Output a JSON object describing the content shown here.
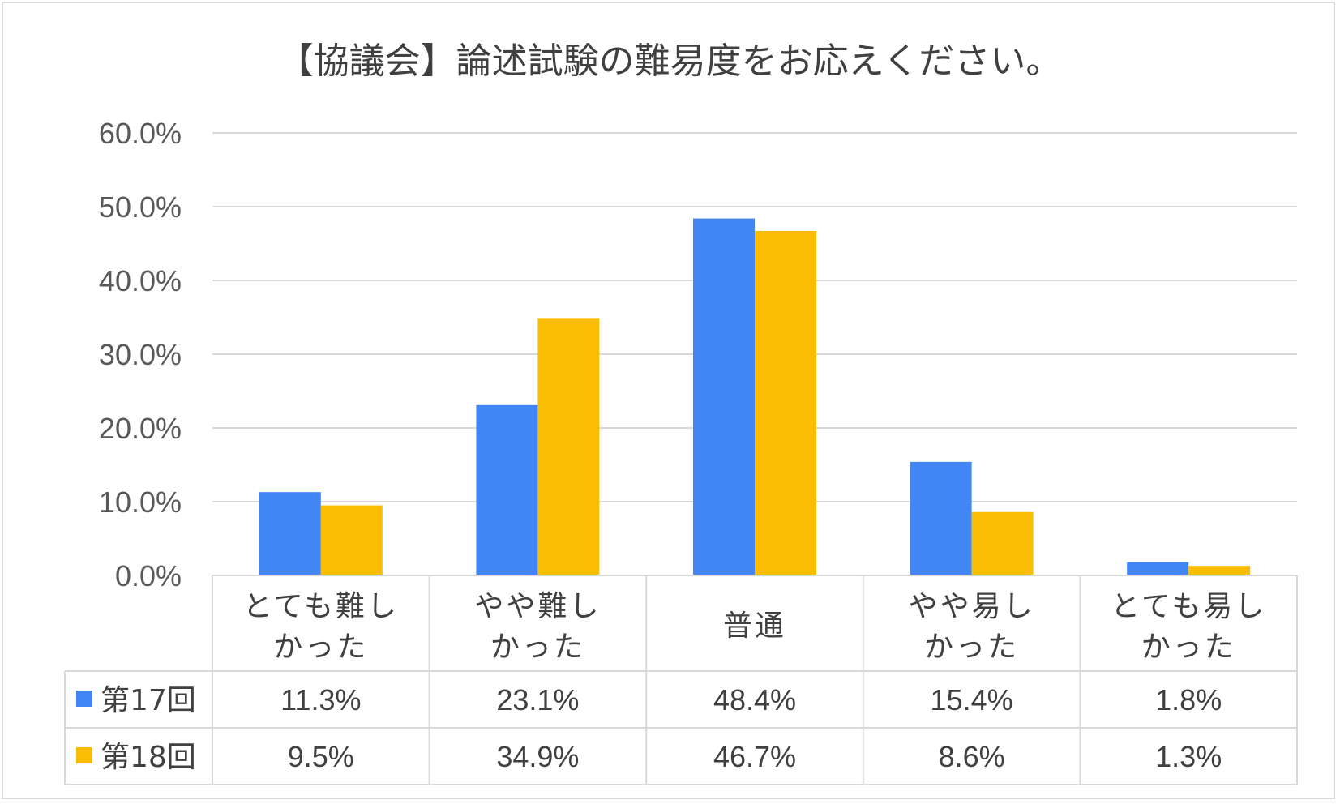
{
  "chart_data": {
    "type": "bar",
    "title": "【協議会】論述試験の難易度をお応えください。",
    "categories": [
      [
        "とても難し",
        "かった"
      ],
      [
        "やや難し",
        "かった"
      ],
      [
        "普通"
      ],
      [
        "やや易し",
        "かった"
      ],
      [
        "とても易し",
        "かった"
      ]
    ],
    "series": [
      {
        "name": "第17回",
        "color": "#4285f4",
        "values": [
          11.3,
          23.1,
          48.4,
          15.4,
          1.8
        ],
        "labels": [
          "11.3%",
          "23.1%",
          "48.4%",
          "15.4%",
          "1.8%"
        ]
      },
      {
        "name": "第18回",
        "color": "#fbbc04",
        "values": [
          9.5,
          34.9,
          46.7,
          8.6,
          1.3
        ],
        "labels": [
          "9.5%",
          "34.9%",
          "46.7%",
          "8.6%",
          "1.3%"
        ]
      }
    ],
    "yticks": [
      "0.0%",
      "10.0%",
      "20.0%",
      "30.0%",
      "40.0%",
      "50.0%",
      "60.0%"
    ],
    "ylim": [
      0,
      60
    ],
    "grid": true,
    "data_table": true
  }
}
